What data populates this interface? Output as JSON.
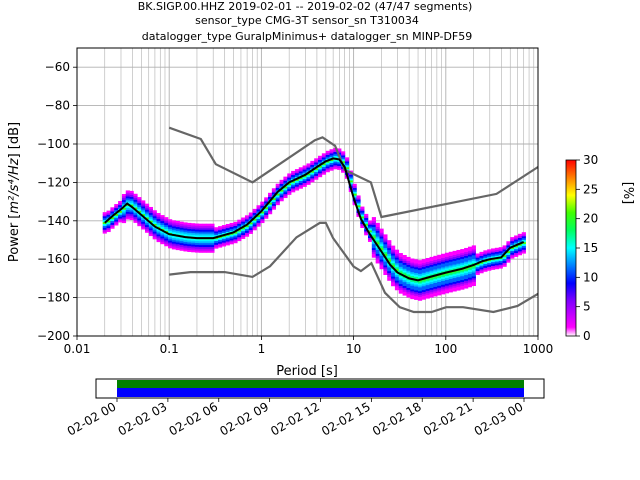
{
  "chart_data": {
    "type": "heatmap",
    "title_lines": [
      "BK.SIGP.00.HHZ   2019-02-01 -- 2019-02-02  (47/47 segments)",
      "sensor_type CMG-3T sensor_sn T310034",
      "datalogger_type GuralpMinimus+ datalogger_sn MINP-DF59"
    ],
    "xlabel": "Period [s]",
    "ylabel_prefix": "Power [",
    "ylabel_unit": "m²/s⁴/Hz",
    "ylabel_suffix": "] [dB]",
    "x_scale": "log",
    "xlim": [
      0.01,
      1000
    ],
    "ylim": [
      -200,
      -50
    ],
    "x_ticks": [
      0.01,
      0.1,
      1,
      10,
      100,
      1000
    ],
    "x_tick_labels": [
      "0.01",
      "0.1",
      "1",
      "10",
      "100",
      "1000"
    ],
    "y_ticks": [
      -200,
      -180,
      -160,
      -140,
      -120,
      -100,
      -80,
      -60
    ],
    "y_tick_labels": [
      "−200",
      "−180",
      "−160",
      "−140",
      "−120",
      "−100",
      "−80",
      "−60"
    ],
    "grid": true,
    "colorbar": {
      "label": "[%]",
      "range": [
        0,
        30
      ],
      "ticks": [
        0,
        5,
        10,
        15,
        20,
        25,
        30
      ],
      "colormap": "pqlx"
    },
    "median_curve": {
      "color": "#000000",
      "x": [
        0.02,
        0.025,
        0.03,
        0.035,
        0.04,
        0.05,
        0.07,
        0.1,
        0.15,
        0.2,
        0.3,
        0.5,
        0.7,
        1,
        1.5,
        2,
        3,
        4,
        5,
        6,
        7,
        8,
        10,
        12,
        15,
        20,
        25,
        30,
        40,
        50,
        70,
        100,
        150,
        200,
        250,
        300,
        400,
        500,
        700
      ],
      "y": [
        -141,
        -137,
        -134,
        -131,
        -133,
        -137,
        -143,
        -147,
        -148.5,
        -149,
        -149,
        -146,
        -142,
        -135,
        -125,
        -120,
        -116,
        -112,
        -109,
        -107.5,
        -108,
        -112,
        -128,
        -139,
        -147,
        -156,
        -163,
        -167,
        -170,
        -171,
        -169,
        -167,
        -165,
        -163,
        -161,
        -160,
        -159,
        -154,
        -151
      ]
    },
    "models": [
      {
        "name": "NHNM",
        "color": "#666666",
        "x": [
          0.1,
          0.22,
          0.32,
          0.8,
          3.8,
          4.6,
          6.3,
          8,
          15.4,
          20,
          354.8,
          1000
        ],
        "y": [
          -91.5,
          -97.4,
          -110.5,
          -120,
          -98,
          -96.5,
          -101,
          -113.5,
          -120,
          -138,
          -126,
          -112
        ]
      },
      {
        "name": "NLNM",
        "color": "#666666",
        "x": [
          0.1,
          0.17,
          0.4,
          0.8,
          1.24,
          2.4,
          4.3,
          5,
          6,
          10,
          12,
          15.6,
          21.9,
          31.6,
          45,
          70,
          101,
          154,
          328,
          600,
          1000
        ],
        "y": [
          -168,
          -166.7,
          -166.7,
          -169.2,
          -163.7,
          -148.6,
          -141.1,
          -141.1,
          -149,
          -163.8,
          -166.2,
          -162.1,
          -177.5,
          -185,
          -187.5,
          -187.5,
          -185,
          -185,
          -187.5,
          -184.4,
          -178
        ]
      }
    ],
    "timeline": {
      "tick_labels": [
        "02-02 00",
        "02-02 03",
        "02-02 06",
        "02-02 09",
        "02-02 12",
        "02-02 15",
        "02-02 18",
        "02-02 21",
        "02-03 00"
      ],
      "data_color": "#008000",
      "used_color": "#0000ff"
    }
  }
}
